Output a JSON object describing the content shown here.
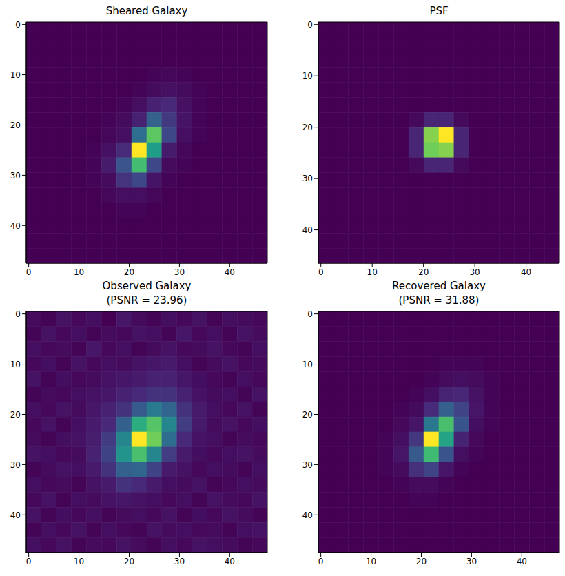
{
  "chart_data": [
    {
      "type": "heatmap",
      "title": [
        "Sheared Galaxy"
      ],
      "xlim": [
        -0.5,
        47.5
      ],
      "ylim": [
        47.5,
        -0.5
      ],
      "xticks": [
        0,
        10,
        20,
        30,
        40
      ],
      "yticks": [
        0,
        10,
        20,
        30,
        40
      ],
      "color": "viridis",
      "cells": [
        [
          0.02,
          0.02,
          0.02,
          0.02,
          0.02,
          0.02,
          0.02,
          0.02,
          0.02,
          0.02,
          0.02,
          0.02,
          0.02,
          0.02,
          0.02,
          0.02
        ],
        [
          0.02,
          0.02,
          0.02,
          0.02,
          0.02,
          0.02,
          0.02,
          0.02,
          0.02,
          0.02,
          0.02,
          0.02,
          0.02,
          0.02,
          0.02,
          0.02
        ],
        [
          0.02,
          0.02,
          0.02,
          0.02,
          0.02,
          0.02,
          0.02,
          0.02,
          0.02,
          0.02,
          0.02,
          0.02,
          0.02,
          0.02,
          0.02,
          0.02
        ],
        [
          0.02,
          0.02,
          0.02,
          0.02,
          0.02,
          0.02,
          0.02,
          0.02,
          0.03,
          0.04,
          0.03,
          0.02,
          0.02,
          0.02,
          0.02,
          0.02
        ],
        [
          0.02,
          0.02,
          0.02,
          0.02,
          0.02,
          0.02,
          0.02,
          0.03,
          0.05,
          0.07,
          0.05,
          0.03,
          0.02,
          0.02,
          0.02,
          0.02
        ],
        [
          0.02,
          0.02,
          0.02,
          0.02,
          0.02,
          0.02,
          0.03,
          0.06,
          0.12,
          0.14,
          0.07,
          0.03,
          0.02,
          0.02,
          0.02,
          0.02
        ],
        [
          0.02,
          0.02,
          0.02,
          0.02,
          0.02,
          0.03,
          0.05,
          0.12,
          0.35,
          0.2,
          0.08,
          0.03,
          0.02,
          0.02,
          0.02,
          0.02
        ],
        [
          0.02,
          0.02,
          0.02,
          0.02,
          0.02,
          0.04,
          0.06,
          0.4,
          0.8,
          0.25,
          0.06,
          0.03,
          0.02,
          0.02,
          0.02,
          0.02
        ],
        [
          0.02,
          0.02,
          0.02,
          0.02,
          0.03,
          0.07,
          0.15,
          0.95,
          0.6,
          0.1,
          0.04,
          0.02,
          0.02,
          0.02,
          0.02,
          0.02
        ],
        [
          0.02,
          0.02,
          0.02,
          0.02,
          0.03,
          0.1,
          0.3,
          0.75,
          0.25,
          0.05,
          0.03,
          0.02,
          0.02,
          0.02,
          0.02,
          0.02
        ],
        [
          0.02,
          0.02,
          0.02,
          0.02,
          0.03,
          0.05,
          0.18,
          0.25,
          0.08,
          0.03,
          0.02,
          0.02,
          0.02,
          0.02,
          0.02,
          0.02
        ],
        [
          0.02,
          0.02,
          0.02,
          0.02,
          0.02,
          0.04,
          0.06,
          0.06,
          0.04,
          0.02,
          0.02,
          0.02,
          0.02,
          0.02,
          0.02,
          0.02
        ],
        [
          0.02,
          0.02,
          0.02,
          0.02,
          0.02,
          0.02,
          0.03,
          0.03,
          0.02,
          0.02,
          0.02,
          0.02,
          0.02,
          0.02,
          0.02,
          0.02
        ],
        [
          0.02,
          0.02,
          0.02,
          0.02,
          0.02,
          0.02,
          0.02,
          0.02,
          0.02,
          0.02,
          0.02,
          0.02,
          0.02,
          0.02,
          0.02,
          0.02
        ],
        [
          0.02,
          0.02,
          0.02,
          0.02,
          0.02,
          0.02,
          0.02,
          0.02,
          0.02,
          0.02,
          0.02,
          0.02,
          0.02,
          0.02,
          0.02,
          0.02
        ],
        [
          0.02,
          0.02,
          0.02,
          0.02,
          0.02,
          0.02,
          0.02,
          0.02,
          0.02,
          0.02,
          0.02,
          0.02,
          0.02,
          0.02,
          0.02,
          0.02
        ]
      ]
    },
    {
      "type": "heatmap",
      "title": [
        "PSF"
      ],
      "xlim": [
        -0.5,
        46.5
      ],
      "ylim": [
        46.5,
        -0.5
      ],
      "xticks": [
        0,
        10,
        20,
        30,
        40
      ],
      "yticks": [
        0,
        10,
        20,
        30,
        40
      ],
      "color": "viridis",
      "cells": [
        [
          0,
          0,
          0,
          0,
          0,
          0,
          0,
          0,
          0,
          0,
          0,
          0,
          0,
          0,
          0,
          0
        ],
        [
          0,
          0,
          0,
          0,
          0,
          0,
          0,
          0,
          0,
          0,
          0,
          0,
          0,
          0,
          0,
          0
        ],
        [
          0,
          0,
          0,
          0,
          0,
          0,
          0,
          0,
          0,
          0,
          0,
          0,
          0,
          0,
          0,
          0
        ],
        [
          0,
          0,
          0,
          0,
          0,
          0,
          0,
          0,
          0,
          0,
          0,
          0,
          0,
          0,
          0,
          0
        ],
        [
          0,
          0,
          0,
          0,
          0,
          0,
          0,
          0,
          0,
          0,
          0,
          0,
          0,
          0,
          0,
          0
        ],
        [
          0,
          0,
          0,
          0,
          0,
          0,
          0,
          0,
          0,
          0,
          0,
          0,
          0,
          0,
          0,
          0
        ],
        [
          0,
          0,
          0,
          0,
          0,
          0,
          0.03,
          0.12,
          0.12,
          0.03,
          0,
          0,
          0,
          0,
          0,
          0
        ],
        [
          0,
          0,
          0,
          0,
          0,
          0,
          0.12,
          0.9,
          1,
          0.12,
          0,
          0,
          0,
          0,
          0,
          0
        ],
        [
          0,
          0,
          0,
          0,
          0,
          0,
          0.12,
          0.88,
          0.9,
          0.12,
          0,
          0,
          0,
          0,
          0,
          0
        ],
        [
          0,
          0,
          0,
          0,
          0,
          0,
          0.03,
          0.12,
          0.12,
          0.03,
          0,
          0,
          0,
          0,
          0,
          0
        ],
        [
          0,
          0,
          0,
          0,
          0,
          0,
          0,
          0,
          0,
          0,
          0,
          0,
          0,
          0,
          0,
          0
        ],
        [
          0,
          0,
          0,
          0,
          0,
          0,
          0,
          0,
          0,
          0,
          0,
          0,
          0,
          0,
          0,
          0
        ],
        [
          0,
          0,
          0,
          0,
          0,
          0,
          0,
          0,
          0,
          0,
          0,
          0,
          0,
          0,
          0,
          0
        ],
        [
          0,
          0,
          0,
          0,
          0,
          0,
          0,
          0,
          0,
          0,
          0,
          0,
          0,
          0,
          0,
          0
        ],
        [
          0,
          0,
          0,
          0,
          0,
          0,
          0,
          0,
          0,
          0,
          0,
          0,
          0,
          0,
          0,
          0
        ],
        [
          0,
          0,
          0,
          0,
          0,
          0,
          0,
          0,
          0,
          0,
          0,
          0,
          0,
          0,
          0,
          0
        ]
      ]
    },
    {
      "type": "heatmap",
      "title": [
        "Observed Galaxy",
        "(PSNR = 23.96)"
      ],
      "xlim": [
        -0.5,
        47.5
      ],
      "ylim": [
        47.5,
        -0.5
      ],
      "xticks": [
        0,
        10,
        20,
        30,
        40
      ],
      "yticks": [
        0,
        10,
        20,
        30,
        40
      ],
      "color": "viridis",
      "cells": [
        [
          0.14,
          0.12,
          0.16,
          0.13,
          0.15,
          0.11,
          0.17,
          0.14,
          0.12,
          0.15,
          0.13,
          0.16,
          0.12,
          0.15,
          0.14,
          0.13
        ],
        [
          0.12,
          0.16,
          0.13,
          0.15,
          0.12,
          0.14,
          0.13,
          0.16,
          0.15,
          0.12,
          0.17,
          0.13,
          0.15,
          0.12,
          0.16,
          0.14
        ],
        [
          0.15,
          0.13,
          0.14,
          0.12,
          0.17,
          0.13,
          0.15,
          0.12,
          0.14,
          0.16,
          0.13,
          0.14,
          0.16,
          0.13,
          0.12,
          0.15
        ],
        [
          0.13,
          0.15,
          0.12,
          0.16,
          0.13,
          0.15,
          0.14,
          0.16,
          0.17,
          0.18,
          0.15,
          0.12,
          0.14,
          0.16,
          0.13,
          0.14
        ],
        [
          0.16,
          0.12,
          0.15,
          0.13,
          0.14,
          0.16,
          0.17,
          0.18,
          0.2,
          0.2,
          0.17,
          0.15,
          0.13,
          0.12,
          0.15,
          0.13
        ],
        [
          0.12,
          0.14,
          0.13,
          0.15,
          0.16,
          0.17,
          0.2,
          0.22,
          0.25,
          0.25,
          0.2,
          0.16,
          0.14,
          0.15,
          0.12,
          0.16
        ],
        [
          0.15,
          0.13,
          0.16,
          0.14,
          0.17,
          0.2,
          0.25,
          0.38,
          0.5,
          0.42,
          0.25,
          0.18,
          0.15,
          0.13,
          0.16,
          0.12
        ],
        [
          0.13,
          0.16,
          0.12,
          0.15,
          0.18,
          0.22,
          0.4,
          0.7,
          0.8,
          0.55,
          0.28,
          0.18,
          0.14,
          0.16,
          0.13,
          0.15
        ],
        [
          0.14,
          0.12,
          0.15,
          0.16,
          0.19,
          0.28,
          0.55,
          0.95,
          0.85,
          0.45,
          0.22,
          0.16,
          0.15,
          0.12,
          0.14,
          0.13
        ],
        [
          0.16,
          0.15,
          0.13,
          0.14,
          0.2,
          0.3,
          0.6,
          0.78,
          0.55,
          0.28,
          0.18,
          0.15,
          0.13,
          0.15,
          0.16,
          0.14
        ],
        [
          0.12,
          0.14,
          0.16,
          0.15,
          0.18,
          0.25,
          0.4,
          0.42,
          0.3,
          0.18,
          0.16,
          0.13,
          0.15,
          0.14,
          0.12,
          0.15
        ],
        [
          0.15,
          0.13,
          0.14,
          0.12,
          0.16,
          0.18,
          0.25,
          0.22,
          0.18,
          0.15,
          0.14,
          0.16,
          0.12,
          0.13,
          0.15,
          0.14
        ],
        [
          0.13,
          0.16,
          0.12,
          0.15,
          0.14,
          0.16,
          0.17,
          0.16,
          0.15,
          0.13,
          0.15,
          0.12,
          0.16,
          0.14,
          0.13,
          0.16
        ],
        [
          0.16,
          0.12,
          0.15,
          0.13,
          0.15,
          0.12,
          0.14,
          0.15,
          0.13,
          0.16,
          0.12,
          0.15,
          0.13,
          0.16,
          0.14,
          0.12
        ],
        [
          0.12,
          0.15,
          0.13,
          0.16,
          0.12,
          0.15,
          0.13,
          0.12,
          0.16,
          0.14,
          0.15,
          0.13,
          0.14,
          0.12,
          0.15,
          0.16
        ],
        [
          0.15,
          0.13,
          0.16,
          0.12,
          0.14,
          0.13,
          0.16,
          0.14,
          0.12,
          0.15,
          0.13,
          0.16,
          0.15,
          0.14,
          0.12,
          0.13
        ]
      ]
    },
    {
      "type": "heatmap",
      "title": [
        "Recovered Galaxy",
        "(PSNR = 31.88)"
      ],
      "xlim": [
        -0.5,
        47.5
      ],
      "ylim": [
        47.5,
        -0.5
      ],
      "xticks": [
        0,
        10,
        20,
        30,
        40
      ],
      "yticks": [
        0,
        10,
        20,
        30,
        40
      ],
      "color": "viridis",
      "cells": [
        [
          0.02,
          0.02,
          0.02,
          0.02,
          0.02,
          0.02,
          0.02,
          0.02,
          0.02,
          0.02,
          0.02,
          0.02,
          0.02,
          0.02,
          0.02,
          0.02
        ],
        [
          0.02,
          0.02,
          0.02,
          0.02,
          0.02,
          0.02,
          0.02,
          0.02,
          0.02,
          0.02,
          0.02,
          0.02,
          0.02,
          0.02,
          0.02,
          0.02
        ],
        [
          0.02,
          0.02,
          0.02,
          0.02,
          0.02,
          0.02,
          0.02,
          0.02,
          0.02,
          0.02,
          0.02,
          0.02,
          0.02,
          0.02,
          0.02,
          0.02
        ],
        [
          0.02,
          0.02,
          0.02,
          0.02,
          0.02,
          0.02,
          0.02,
          0.02,
          0.03,
          0.03,
          0.03,
          0.02,
          0.02,
          0.02,
          0.02,
          0.02
        ],
        [
          0.02,
          0.02,
          0.02,
          0.02,
          0.02,
          0.02,
          0.02,
          0.03,
          0.05,
          0.06,
          0.05,
          0.03,
          0.02,
          0.02,
          0.02,
          0.02
        ],
        [
          0.02,
          0.02,
          0.02,
          0.02,
          0.02,
          0.02,
          0.03,
          0.06,
          0.12,
          0.13,
          0.07,
          0.03,
          0.02,
          0.02,
          0.02,
          0.02
        ],
        [
          0.02,
          0.02,
          0.02,
          0.02,
          0.02,
          0.03,
          0.05,
          0.14,
          0.32,
          0.22,
          0.08,
          0.03,
          0.02,
          0.02,
          0.02,
          0.02
        ],
        [
          0.02,
          0.02,
          0.02,
          0.02,
          0.02,
          0.04,
          0.08,
          0.42,
          0.72,
          0.28,
          0.06,
          0.03,
          0.02,
          0.02,
          0.02,
          0.02
        ],
        [
          0.02,
          0.02,
          0.02,
          0.02,
          0.03,
          0.06,
          0.18,
          0.9,
          0.6,
          0.12,
          0.04,
          0.02,
          0.02,
          0.02,
          0.02,
          0.02
        ],
        [
          0.02,
          0.02,
          0.02,
          0.02,
          0.03,
          0.08,
          0.3,
          0.7,
          0.28,
          0.06,
          0.03,
          0.02,
          0.02,
          0.02,
          0.02,
          0.02
        ],
        [
          0.02,
          0.02,
          0.02,
          0.02,
          0.03,
          0.05,
          0.16,
          0.22,
          0.08,
          0.03,
          0.02,
          0.02,
          0.02,
          0.02,
          0.02,
          0.02
        ],
        [
          0.02,
          0.02,
          0.02,
          0.02,
          0.02,
          0.03,
          0.05,
          0.05,
          0.03,
          0.02,
          0.02,
          0.02,
          0.02,
          0.02,
          0.02,
          0.02
        ],
        [
          0.02,
          0.02,
          0.02,
          0.02,
          0.02,
          0.02,
          0.03,
          0.03,
          0.02,
          0.02,
          0.02,
          0.02,
          0.02,
          0.02,
          0.02,
          0.02
        ],
        [
          0.02,
          0.02,
          0.02,
          0.02,
          0.02,
          0.02,
          0.02,
          0.02,
          0.02,
          0.02,
          0.02,
          0.02,
          0.02,
          0.02,
          0.02,
          0.02
        ],
        [
          0.02,
          0.02,
          0.02,
          0.02,
          0.02,
          0.02,
          0.02,
          0.02,
          0.02,
          0.02,
          0.02,
          0.02,
          0.02,
          0.02,
          0.02,
          0.02
        ],
        [
          0.02,
          0.02,
          0.02,
          0.02,
          0.02,
          0.02,
          0.02,
          0.02,
          0.02,
          0.02,
          0.02,
          0.02,
          0.02,
          0.02,
          0.02,
          0.02
        ]
      ]
    }
  ]
}
